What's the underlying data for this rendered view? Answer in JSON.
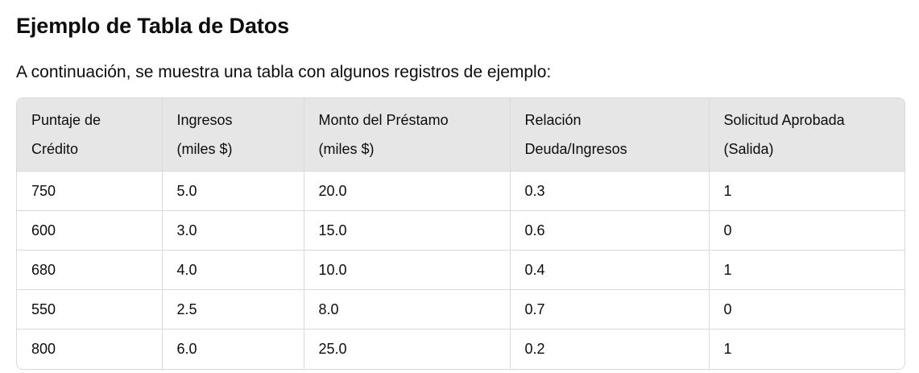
{
  "heading": "Ejemplo de Tabla de Datos",
  "intro": "A continuación, se muestra una tabla con algunos registros de ejemplo:",
  "table": {
    "headers": [
      [
        "Puntaje de",
        "Crédito"
      ],
      [
        "Ingresos",
        "(miles $)"
      ],
      [
        "Monto del Préstamo",
        "(miles $)"
      ],
      [
        "Relación",
        "Deuda/Ingresos"
      ],
      [
        "Solicitud Aprobada",
        "(Salida)"
      ]
    ],
    "rows": [
      [
        "750",
        "5.0",
        "20.0",
        "0.3",
        "1"
      ],
      [
        "600",
        "3.0",
        "15.0",
        "0.6",
        "0"
      ],
      [
        "680",
        "4.0",
        "10.0",
        "0.4",
        "1"
      ],
      [
        "550",
        "2.5",
        "8.0",
        "0.7",
        "0"
      ],
      [
        "800",
        "6.0",
        "25.0",
        "0.2",
        "1"
      ]
    ]
  },
  "colors": {
    "header_background": "#e6e6e6",
    "border": "#d9d9d9",
    "text": "#0d0d0d"
  }
}
